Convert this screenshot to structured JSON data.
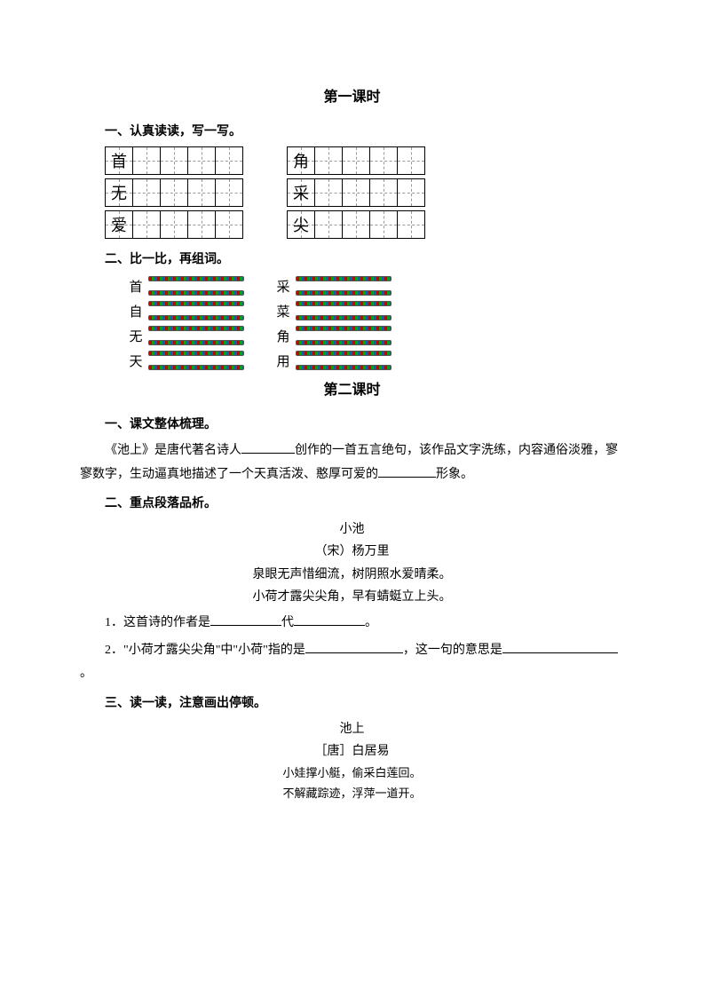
{
  "colors": {
    "text": "#000000",
    "bg": "#ffffff",
    "dash": "#999999",
    "decor_border": "#555555",
    "decor_red": "#cc0000",
    "decor_green": "#00aa00",
    "decor_blue": "#0066aa"
  },
  "lesson1": {
    "title": "第一课时",
    "section1": {
      "head": "一、认真读读，写一写。",
      "rows": [
        {
          "left": "首",
          "right": "角"
        },
        {
          "left": "无",
          "right": "采"
        },
        {
          "left": "爱",
          "right": "尖"
        }
      ],
      "cells_per_block": 5
    },
    "section2": {
      "head": "二、比一比，再组词。",
      "pairs": [
        {
          "left": "首",
          "right": "采"
        },
        {
          "left": "自",
          "right": "菜"
        },
        {
          "left": "无",
          "right": "角"
        },
        {
          "left": "天",
          "right": "用"
        }
      ]
    }
  },
  "lesson2": {
    "title": "第二课时",
    "section1": {
      "head": "一、课文整体梳理。",
      "para_prefix": "《池上》是唐代著名诗人",
      "para_mid": "创作的一首五言绝句，该作品文字洗练，内容通俗淡雅，寥寥数字，生动逼真地描述了一个天真活泼、憨厚可爱的",
      "para_suffix": "形象。"
    },
    "section2": {
      "head": "二、重点段落品析。",
      "poem": {
        "title": "小池",
        "author": "（宋）杨万里",
        "line1": "泉眼无声惜细流，树阴照水爱晴柔。",
        "line2": "小荷才露尖尖角，早有蜻蜓立上头。"
      },
      "q1_pre": "1．这首诗的作者是",
      "q1_mid": "代",
      "q1_end": "。",
      "q2_pre": "2．\"小荷才露尖尖角\"中\"小荷\"指的是",
      "q2_mid": "，这一句的意思是",
      "q2_end": "。"
    },
    "section3": {
      "head": "三、读一读，注意画出停顿。",
      "poem": {
        "title": "池上",
        "author": "［唐］白居易",
        "line1": "小娃撑小艇，偷采白莲回。",
        "line2": "不解藏踪迹，浮萍一道开。"
      }
    }
  }
}
